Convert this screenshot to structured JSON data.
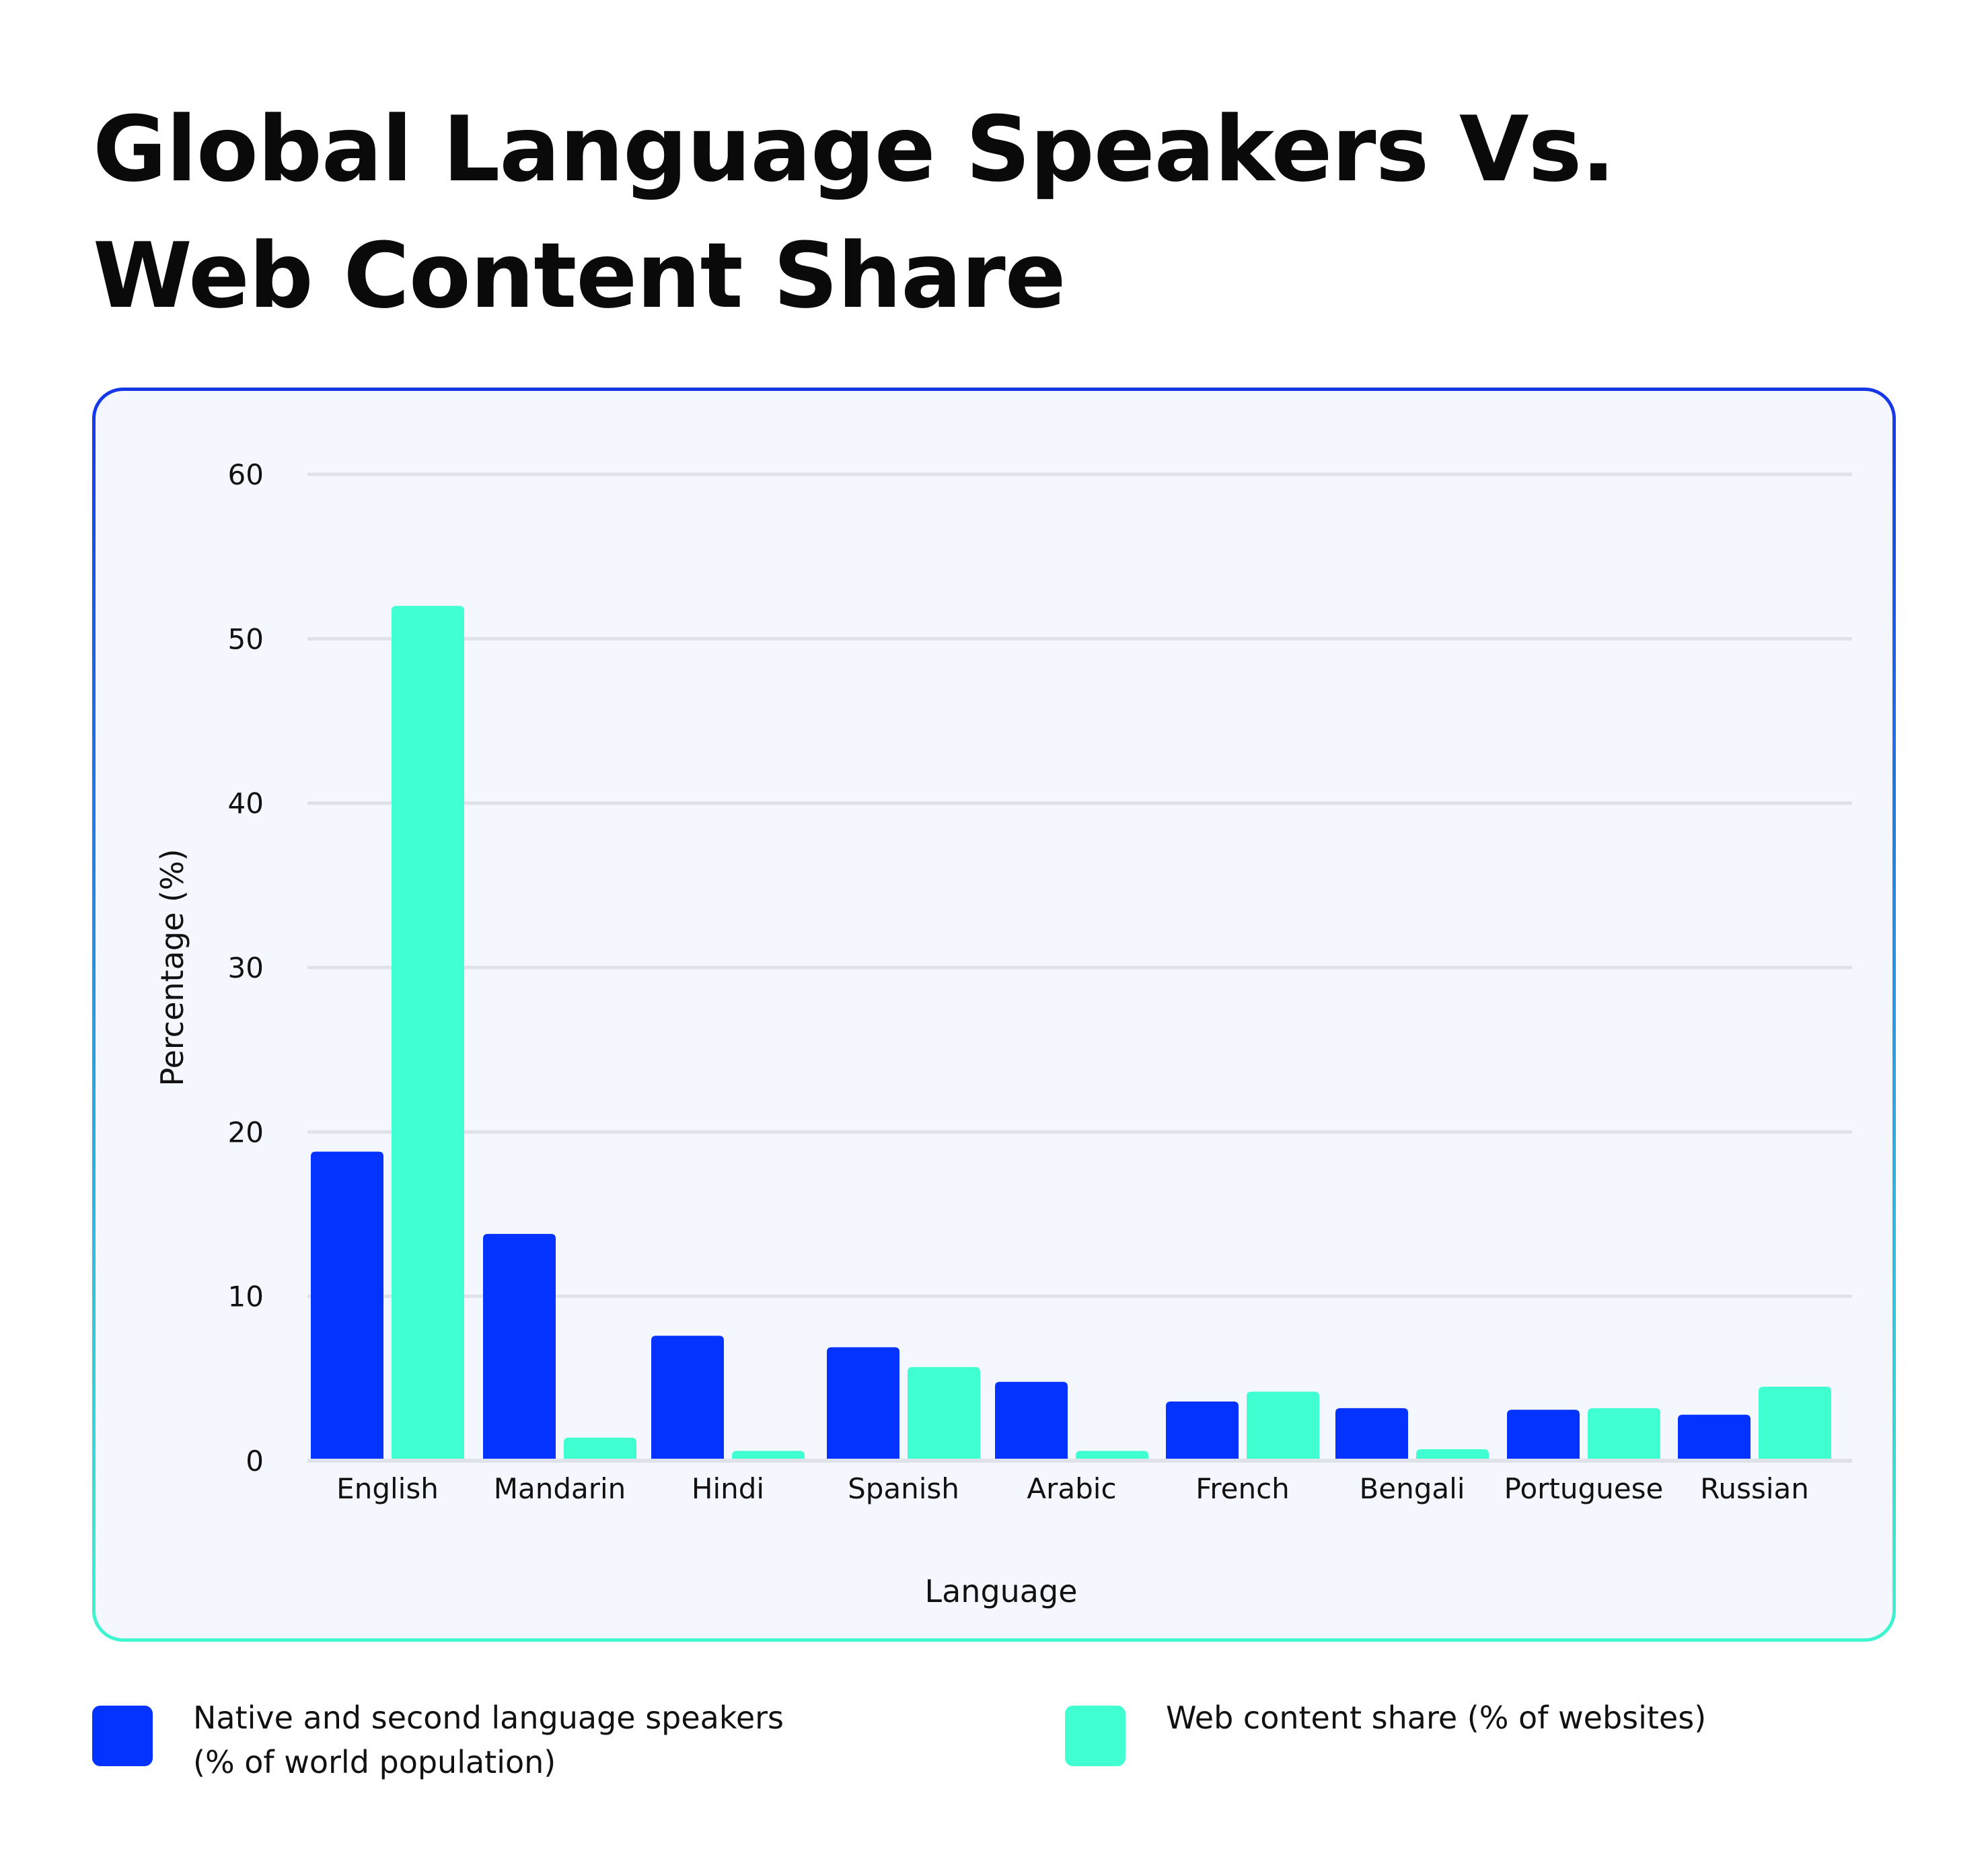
{
  "title": {
    "line1": "Global Language Speakers Vs.",
    "line2": "Web Content Share"
  },
  "legend": {
    "series1": {
      "line1": "Native and second language speakers",
      "line2": "(% of world population)",
      "color": "#0433ff"
    },
    "series2": {
      "line1": "Web content share (% of websites)",
      "color": "#40ffd1"
    }
  },
  "chart_data": {
    "type": "bar",
    "xlabel": "Language",
    "ylabel": "Percentage (%)",
    "ylim": [
      0,
      60
    ],
    "yticks": [
      0,
      10,
      20,
      30,
      40,
      50,
      60
    ],
    "grid": true,
    "legend_position": "bottom",
    "categories": [
      "English",
      "Mandarin",
      "Hindi",
      "Spanish",
      "Arabic",
      "French",
      "Bengali",
      "Portuguese",
      "Russian"
    ],
    "series": [
      {
        "name": "Native and second language speakers (% of world population)",
        "color": "#0433ff",
        "values": [
          18.8,
          13.8,
          7.6,
          6.9,
          4.8,
          3.6,
          3.2,
          3.1,
          2.8
        ]
      },
      {
        "name": "Web content share (% of websites)",
        "color": "#40ffd1",
        "values": [
          52.0,
          1.4,
          0.6,
          5.7,
          0.6,
          4.2,
          0.7,
          3.2,
          4.5
        ]
      }
    ]
  }
}
